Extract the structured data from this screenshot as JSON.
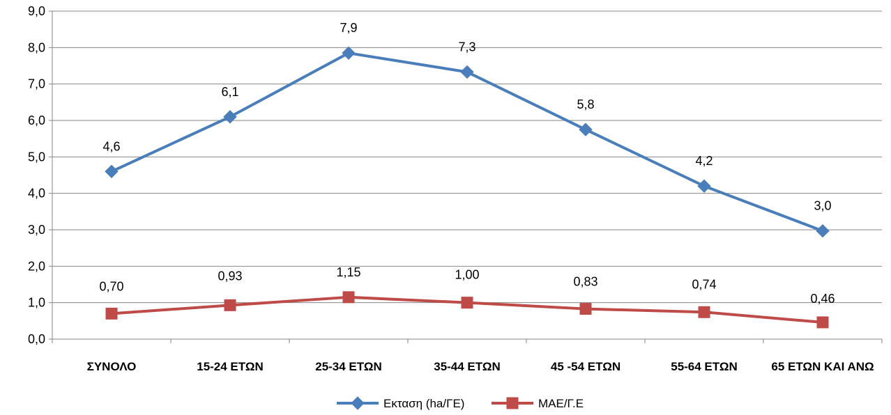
{
  "chart_data": {
    "type": "line",
    "title": "",
    "xlabel": "",
    "ylabel": "",
    "categories": [
      "ΣΥΝΟΛΟ",
      "15-24 ΕΤΩΝ",
      "25-34 ΕΤΩΝ",
      "35-44 ΕΤΩΝ",
      "45 -54 ΕΤΩΝ",
      "55-64 ΕΤΩΝ",
      "65 ΕΤΩΝ ΚΑΙ ΑΝΩ"
    ],
    "ylim": [
      0,
      9
    ],
    "yticks": [
      "0,0",
      "1,0",
      "2,0",
      "3,0",
      "4,0",
      "5,0",
      "6,0",
      "7,0",
      "8,0",
      "9,0"
    ],
    "grid": true,
    "legend_position": "bottom",
    "series": [
      {
        "name": "Εκταση (ha/ΓΕ)",
        "color": "#4a7ebb",
        "marker": "diamond",
        "values": [
          4.6,
          6.1,
          7.85,
          7.33,
          5.75,
          4.2,
          2.97
        ],
        "labels": [
          "4,6",
          "6,1",
          "7,9",
          "7,3",
          "5,8",
          "4,2",
          "3,0"
        ]
      },
      {
        "name": "ΜΑΕ/Γ.Ε",
        "color": "#be4b48",
        "marker": "square",
        "values": [
          0.7,
          0.93,
          1.15,
          1.0,
          0.83,
          0.74,
          0.46
        ],
        "labels": [
          "0,70",
          "0,93",
          "1,15",
          "1,00",
          "0,83",
          "0,74",
          "0,46"
        ]
      }
    ]
  }
}
